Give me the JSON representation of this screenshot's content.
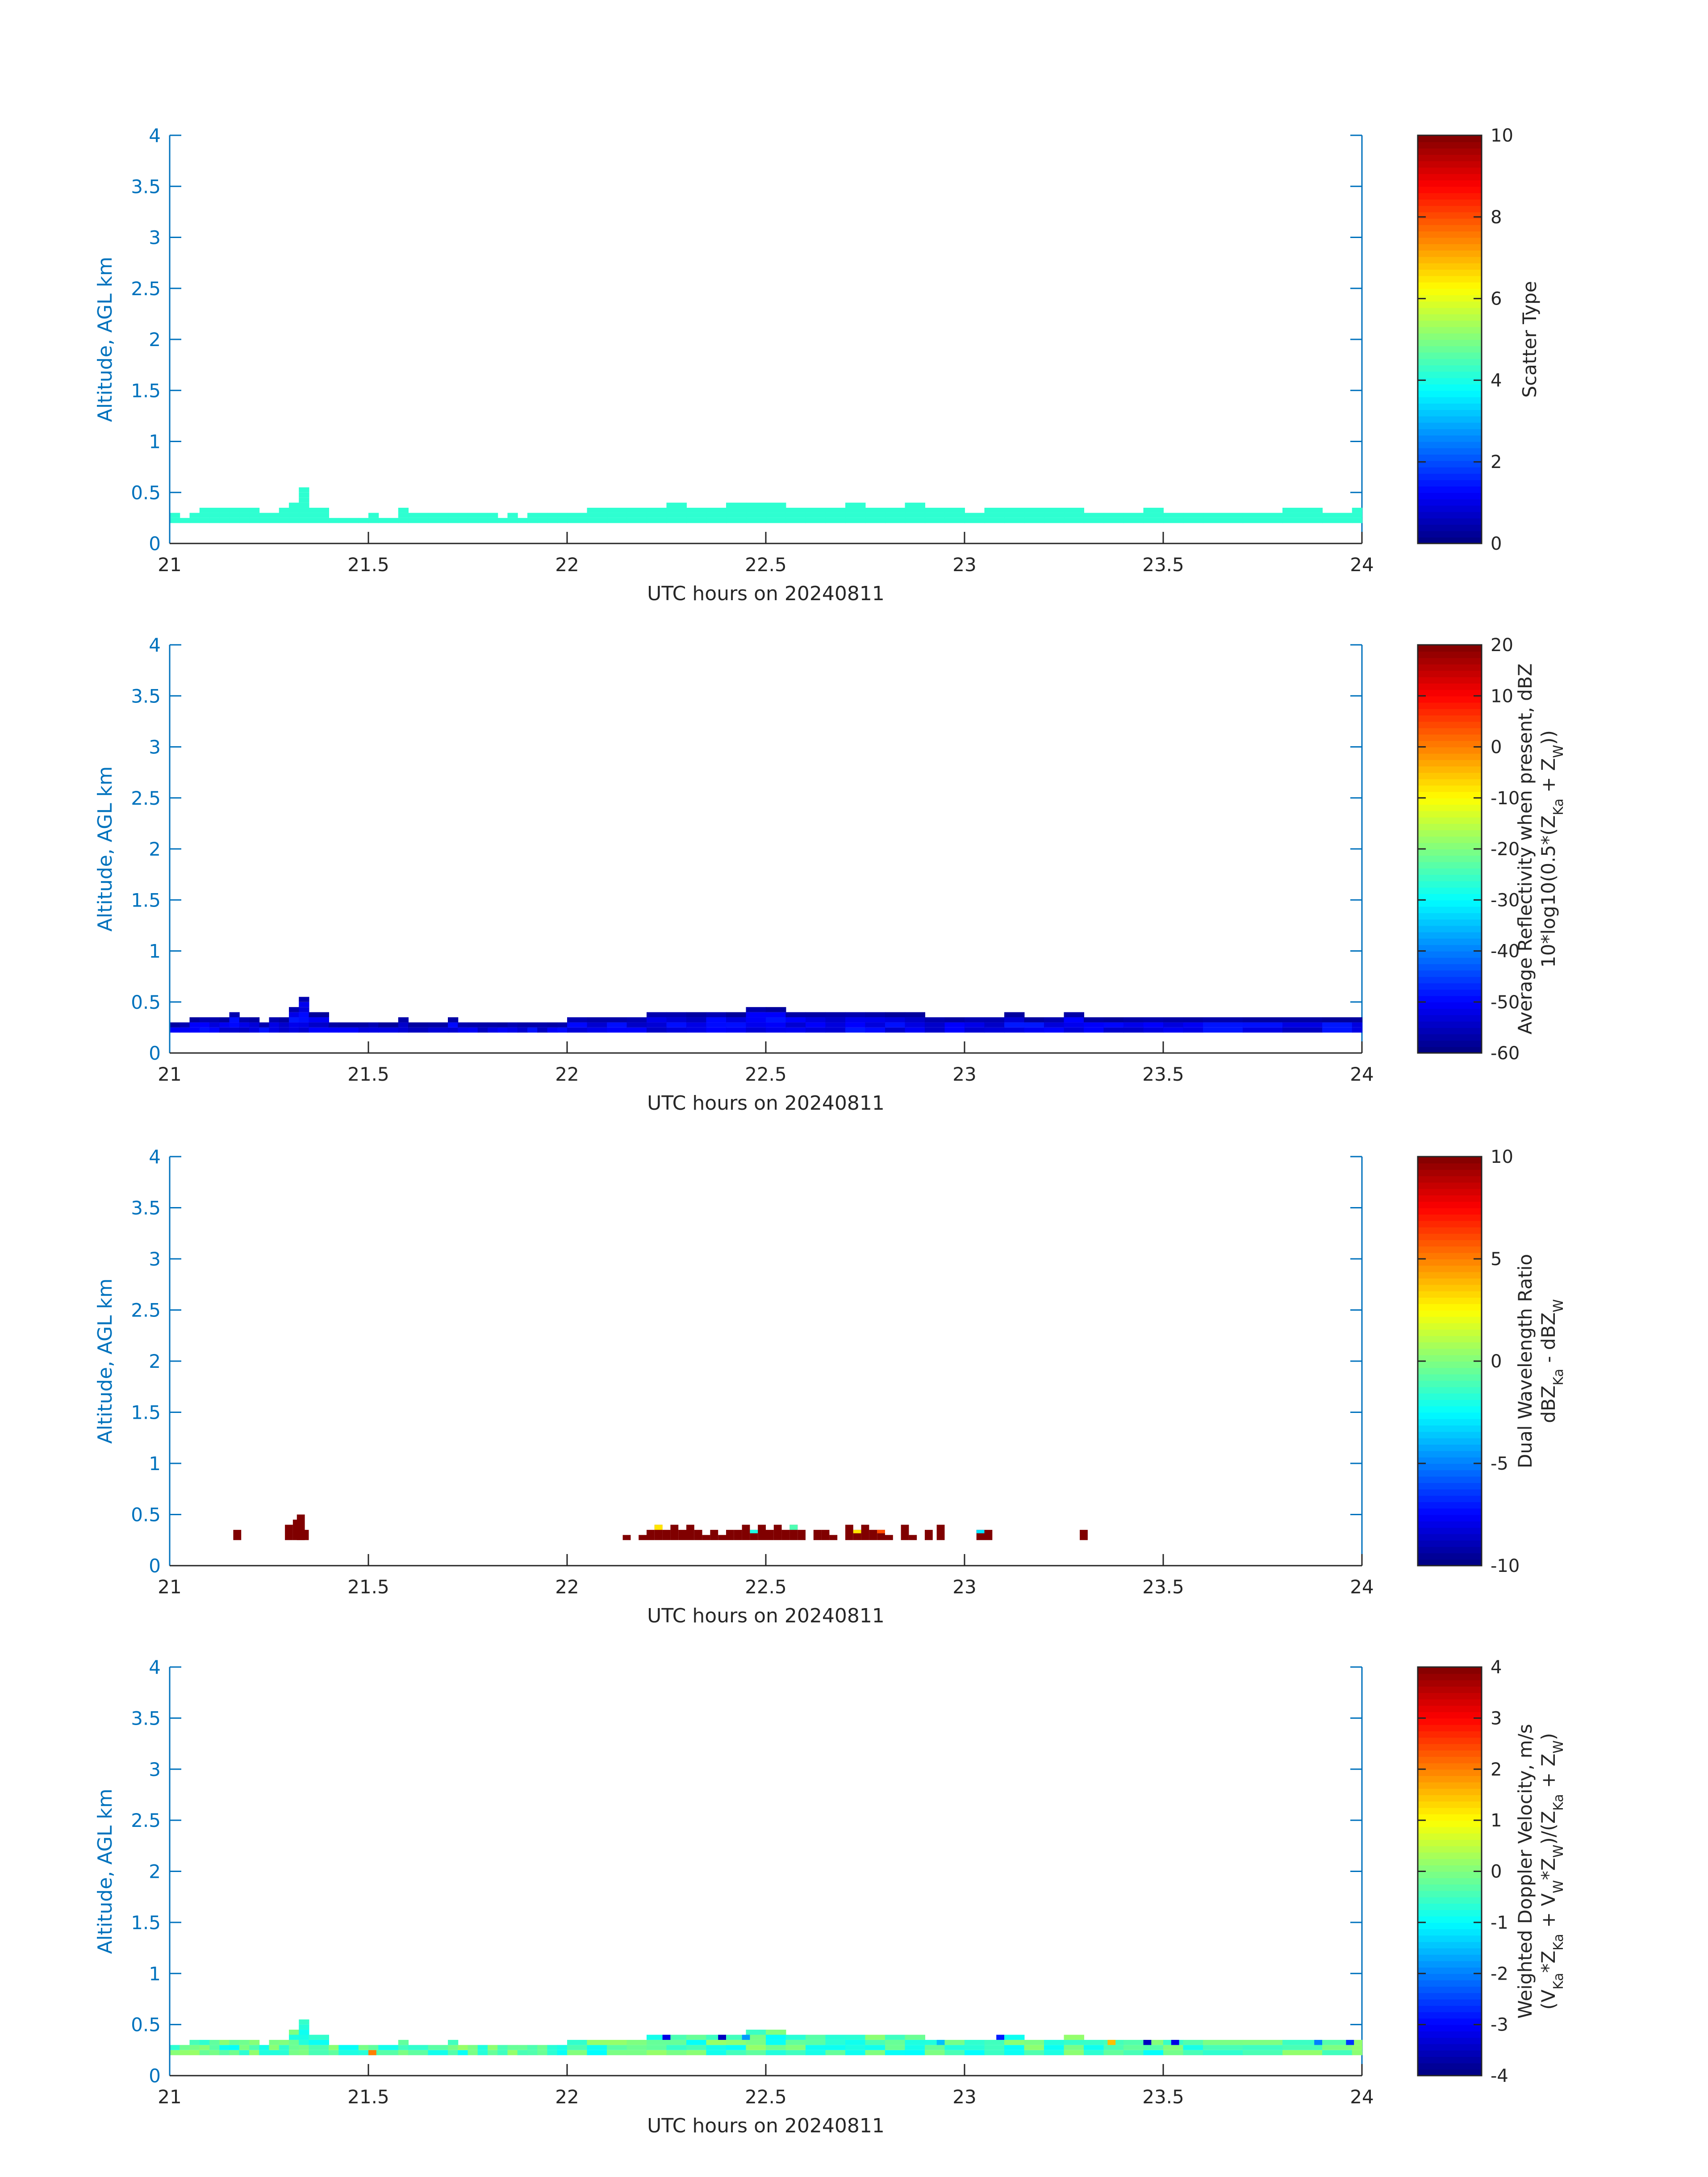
{
  "figure": {
    "xlabel": "UTC hours on 20240811",
    "ylabel": "Altitude, AGL km",
    "xticks": [
      "21",
      "21.5",
      "22",
      "22.5",
      "23",
      "23.5",
      "24"
    ],
    "yticks": [
      "0",
      "0.5",
      "1",
      "1.5",
      "2",
      "2.5",
      "3",
      "3.5",
      "4"
    ],
    "axis_color": "#0072bd",
    "text_color": "#262626",
    "colormap": "jet"
  },
  "chart_data": [
    {
      "type": "heatmap",
      "panel": "scatter-type",
      "xlabel": "UTC hours on 20240811",
      "ylabel": "Altitude, AGL km",
      "xlim": [
        21,
        24
      ],
      "ylim": [
        0,
        4
      ],
      "colorbar": {
        "labels": [
          "Scatter Type"
        ],
        "range": [
          0,
          10
        ],
        "ticks": [
          "0",
          "2",
          "4",
          "6",
          "8",
          "10"
        ]
      },
      "cloud_value": 4.2,
      "cloud_top_km": [
        0.3,
        0.3,
        0.3,
        0.3,
        0.3,
        0.3,
        0.3,
        0.3,
        0.3,
        0.3,
        0.3,
        0.3,
        0.3,
        0.3,
        0.3,
        0.3,
        0.3,
        0.3,
        0.3,
        0.3,
        0.3,
        0.3,
        0.3,
        0.3,
        0.3,
        0.3,
        0.3,
        0.3,
        0.3,
        0.3,
        0.3,
        0.3,
        0.3,
        0.3,
        0.3,
        0.3,
        0.3,
        0.3,
        0.3,
        0.3,
        0.3,
        0.3,
        0.3,
        0.3,
        0.3,
        0.3,
        0.3,
        0.3,
        0.3,
        0.3,
        0.3,
        0.3,
        0.3,
        0.3,
        0.3,
        0.3,
        0.3,
        0.3,
        0.3,
        0.3,
        0.3,
        0.3,
        0.3,
        0.3,
        0.3,
        0.3,
        0.3,
        0.3,
        0.3,
        0.3,
        0.3,
        0.3
      ],
      "columns": [
        [
          21.0,
          0.3
        ],
        [
          21.025,
          0.25
        ],
        [
          21.05,
          0.3
        ],
        [
          21.075,
          0.35
        ],
        [
          21.1,
          0.35
        ],
        [
          21.125,
          0.35
        ],
        [
          21.15,
          0.35
        ],
        [
          21.175,
          0.35
        ],
        [
          21.2,
          0.35
        ],
        [
          21.225,
          0.3
        ],
        [
          21.25,
          0.3
        ],
        [
          21.275,
          0.35
        ],
        [
          21.3,
          0.4
        ],
        [
          21.325,
          0.55
        ],
        [
          21.35,
          0.35
        ],
        [
          21.4,
          0.25
        ],
        [
          21.425,
          0.25
        ],
        [
          21.475,
          0.25
        ],
        [
          21.5,
          0.3
        ],
        [
          21.525,
          0.25
        ],
        [
          21.575,
          0.35
        ],
        [
          21.6,
          0.3
        ],
        [
          21.65,
          0.3
        ],
        [
          21.7,
          0.3
        ],
        [
          21.725,
          0.3
        ],
        [
          21.75,
          0.3
        ],
        [
          21.775,
          0.3
        ],
        [
          21.8,
          0.3
        ],
        [
          21.825,
          0.25
        ],
        [
          21.85,
          0.3
        ],
        [
          21.875,
          0.25
        ],
        [
          21.9,
          0.3
        ],
        [
          21.925,
          0.3
        ],
        [
          21.95,
          0.3
        ],
        [
          21.975,
          0.3
        ],
        [
          22.0,
          0.3
        ],
        [
          22.05,
          0.35
        ],
        [
          22.1,
          0.35
        ],
        [
          22.15,
          0.35
        ],
        [
          22.2,
          0.35
        ],
        [
          22.25,
          0.4
        ],
        [
          22.3,
          0.35
        ],
        [
          22.35,
          0.35
        ],
        [
          22.4,
          0.4
        ],
        [
          22.45,
          0.4
        ],
        [
          22.5,
          0.4
        ],
        [
          22.55,
          0.35
        ],
        [
          22.6,
          0.35
        ],
        [
          22.65,
          0.35
        ],
        [
          22.7,
          0.4
        ],
        [
          22.75,
          0.35
        ],
        [
          22.8,
          0.35
        ],
        [
          22.85,
          0.4
        ],
        [
          22.9,
          0.35
        ],
        [
          22.95,
          0.35
        ],
        [
          23.0,
          0.3
        ],
        [
          23.05,
          0.35
        ],
        [
          23.1,
          0.35
        ],
        [
          23.15,
          0.35
        ],
        [
          23.2,
          0.35
        ],
        [
          23.25,
          0.35
        ],
        [
          23.3,
          0.3
        ],
        [
          23.35,
          0.3
        ],
        [
          23.4,
          0.3
        ],
        [
          23.45,
          0.35
        ],
        [
          23.5,
          0.3
        ],
        [
          23.55,
          0.3
        ],
        [
          23.6,
          0.3
        ],
        [
          23.7,
          0.3
        ],
        [
          23.8,
          0.35
        ],
        [
          23.9,
          0.3
        ],
        [
          23.975,
          0.35
        ]
      ]
    },
    {
      "type": "heatmap",
      "panel": "average-reflectivity",
      "xlabel": "UTC hours on 20240811",
      "ylabel": "Altitude, AGL km",
      "xlim": [
        21,
        24
      ],
      "ylim": [
        0,
        4
      ],
      "colorbar": {
        "labels": [
          "Average Reflectivity when present, dBZ",
          "10*log10(0.5*(Z_Ka + Z_W))"
        ],
        "range": [
          -60,
          20
        ],
        "ticks": [
          "-60",
          "-50",
          "-40",
          "-30",
          "-20",
          "-10",
          "0",
          "10",
          "20"
        ]
      },
      "value_range_dbz": [
        -58,
        -48
      ],
      "columns": [
        [
          21.0,
          0.3
        ],
        [
          21.025,
          0.3
        ],
        [
          21.05,
          0.35
        ],
        [
          21.075,
          0.35
        ],
        [
          21.1,
          0.35
        ],
        [
          21.125,
          0.35
        ],
        [
          21.15,
          0.4
        ],
        [
          21.175,
          0.35
        ],
        [
          21.2,
          0.35
        ],
        [
          21.225,
          0.3
        ],
        [
          21.25,
          0.35
        ],
        [
          21.275,
          0.35
        ],
        [
          21.3,
          0.45
        ],
        [
          21.325,
          0.55
        ],
        [
          21.35,
          0.4
        ],
        [
          21.4,
          0.3
        ],
        [
          21.425,
          0.3
        ],
        [
          21.475,
          0.3
        ],
        [
          21.5,
          0.3
        ],
        [
          21.525,
          0.3
        ],
        [
          21.575,
          0.35
        ],
        [
          21.6,
          0.3
        ],
        [
          21.65,
          0.3
        ],
        [
          21.7,
          0.35
        ],
        [
          21.725,
          0.3
        ],
        [
          21.75,
          0.3
        ],
        [
          21.775,
          0.3
        ],
        [
          21.8,
          0.3
        ],
        [
          21.825,
          0.3
        ],
        [
          21.85,
          0.3
        ],
        [
          21.875,
          0.3
        ],
        [
          21.9,
          0.3
        ],
        [
          21.925,
          0.3
        ],
        [
          21.95,
          0.3
        ],
        [
          21.975,
          0.3
        ],
        [
          22.0,
          0.35
        ],
        [
          22.05,
          0.35
        ],
        [
          22.1,
          0.35
        ],
        [
          22.15,
          0.35
        ],
        [
          22.2,
          0.4
        ],
        [
          22.25,
          0.4
        ],
        [
          22.3,
          0.4
        ],
        [
          22.35,
          0.4
        ],
        [
          22.4,
          0.4
        ],
        [
          22.45,
          0.45
        ],
        [
          22.5,
          0.45
        ],
        [
          22.55,
          0.4
        ],
        [
          22.6,
          0.4
        ],
        [
          22.65,
          0.4
        ],
        [
          22.7,
          0.4
        ],
        [
          22.75,
          0.4
        ],
        [
          22.8,
          0.4
        ],
        [
          22.85,
          0.4
        ],
        [
          22.9,
          0.35
        ],
        [
          22.95,
          0.35
        ],
        [
          23.0,
          0.35
        ],
        [
          23.05,
          0.35
        ],
        [
          23.1,
          0.4
        ],
        [
          23.15,
          0.35
        ],
        [
          23.2,
          0.35
        ],
        [
          23.25,
          0.4
        ],
        [
          23.3,
          0.35
        ],
        [
          23.35,
          0.35
        ],
        [
          23.4,
          0.35
        ],
        [
          23.45,
          0.35
        ],
        [
          23.5,
          0.35
        ],
        [
          23.55,
          0.35
        ],
        [
          23.6,
          0.35
        ],
        [
          23.7,
          0.35
        ],
        [
          23.8,
          0.35
        ],
        [
          23.9,
          0.35
        ],
        [
          23.975,
          0.35
        ]
      ]
    },
    {
      "type": "heatmap",
      "panel": "dual-wavelength-ratio",
      "xlabel": "UTC hours on 20240811",
      "ylabel": "Altitude, AGL km",
      "xlim": [
        21,
        24
      ],
      "ylim": [
        0,
        4
      ],
      "colorbar": {
        "labels": [
          "Dual Wavelength Ratio",
          "dBZ_Ka - dBZ_W"
        ],
        "range": [
          -10,
          10
        ],
        "ticks": [
          "-10",
          "-5",
          "0",
          "5",
          "10"
        ]
      },
      "cells": [
        [
          21.16,
          0.35,
          10
        ],
        [
          21.29,
          0.4,
          10
        ],
        [
          21.31,
          0.45,
          10
        ],
        [
          21.32,
          0.5,
          10
        ],
        [
          21.33,
          0.35,
          10
        ],
        [
          22.14,
          0.3,
          10
        ],
        [
          22.18,
          0.3,
          10
        ],
        [
          22.2,
          0.35,
          10
        ],
        [
          22.22,
          0.4,
          3
        ],
        [
          22.24,
          0.35,
          10
        ],
        [
          22.26,
          0.4,
          10
        ],
        [
          22.28,
          0.35,
          10
        ],
        [
          22.3,
          0.4,
          10
        ],
        [
          22.32,
          0.35,
          10
        ],
        [
          22.34,
          0.3,
          10
        ],
        [
          22.36,
          0.35,
          10
        ],
        [
          22.38,
          0.3,
          10
        ],
        [
          22.4,
          0.35,
          10
        ],
        [
          22.42,
          0.35,
          10
        ],
        [
          22.44,
          0.4,
          10
        ],
        [
          22.46,
          0.35,
          -2
        ],
        [
          22.48,
          0.4,
          10
        ],
        [
          22.5,
          0.35,
          10
        ],
        [
          22.52,
          0.4,
          10
        ],
        [
          22.54,
          0.35,
          10
        ],
        [
          22.56,
          0.4,
          -1
        ],
        [
          22.58,
          0.35,
          10
        ],
        [
          22.62,
          0.35,
          10
        ],
        [
          22.64,
          0.35,
          10
        ],
        [
          22.66,
          0.3,
          10
        ],
        [
          22.7,
          0.4,
          10
        ],
        [
          22.72,
          0.35,
          3
        ],
        [
          22.74,
          0.4,
          10
        ],
        [
          22.76,
          0.35,
          10
        ],
        [
          22.78,
          0.35,
          6
        ],
        [
          22.8,
          0.3,
          10
        ],
        [
          22.84,
          0.4,
          10
        ],
        [
          22.86,
          0.3,
          10
        ],
        [
          22.9,
          0.35,
          10
        ],
        [
          22.93,
          0.4,
          10
        ],
        [
          23.03,
          0.35,
          -3
        ],
        [
          23.05,
          0.35,
          10
        ],
        [
          23.29,
          0.35,
          10
        ]
      ]
    },
    {
      "type": "heatmap",
      "panel": "weighted-doppler-velocity",
      "xlabel": "UTC hours on 20240811",
      "ylabel": "Altitude, AGL km",
      "xlim": [
        21,
        24
      ],
      "ylim": [
        0,
        4
      ],
      "colorbar": {
        "labels": [
          "Weighted Doppler Velocity, m/s",
          "(V_Ka*Z_Ka + V_W*Z_W)/(Z_Ka + Z_W)"
        ],
        "range": [
          -4,
          4
        ],
        "ticks": [
          "-4",
          "-3",
          "-2",
          "-1",
          "0",
          "1",
          "2",
          "3",
          "4"
        ]
      },
      "value_range_ms": [
        -1.0,
        0.2
      ],
      "columns": [
        [
          21.0,
          0.3
        ],
        [
          21.025,
          0.3
        ],
        [
          21.05,
          0.35
        ],
        [
          21.075,
          0.35
        ],
        [
          21.1,
          0.35
        ],
        [
          21.125,
          0.35
        ],
        [
          21.15,
          0.35
        ],
        [
          21.175,
          0.35
        ],
        [
          21.2,
          0.35
        ],
        [
          21.225,
          0.3
        ],
        [
          21.25,
          0.35
        ],
        [
          21.275,
          0.35
        ],
        [
          21.3,
          0.45
        ],
        [
          21.325,
          0.55
        ],
        [
          21.35,
          0.4
        ],
        [
          21.4,
          0.3
        ],
        [
          21.425,
          0.3
        ],
        [
          21.475,
          0.3
        ],
        [
          21.5,
          0.3
        ],
        [
          21.525,
          0.3
        ],
        [
          21.575,
          0.35
        ],
        [
          21.6,
          0.3
        ],
        [
          21.65,
          0.3
        ],
        [
          21.7,
          0.35
        ],
        [
          21.725,
          0.3
        ],
        [
          21.75,
          0.3
        ],
        [
          21.775,
          0.3
        ],
        [
          21.8,
          0.3
        ],
        [
          21.825,
          0.3
        ],
        [
          21.85,
          0.3
        ],
        [
          21.875,
          0.3
        ],
        [
          21.9,
          0.3
        ],
        [
          21.925,
          0.3
        ],
        [
          21.95,
          0.3
        ],
        [
          21.975,
          0.3
        ],
        [
          22.0,
          0.35
        ],
        [
          22.05,
          0.35
        ],
        [
          22.1,
          0.35
        ],
        [
          22.15,
          0.35
        ],
        [
          22.2,
          0.4
        ],
        [
          22.25,
          0.4
        ],
        [
          22.3,
          0.4
        ],
        [
          22.35,
          0.4
        ],
        [
          22.4,
          0.4
        ],
        [
          22.45,
          0.45
        ],
        [
          22.5,
          0.45
        ],
        [
          22.55,
          0.4
        ],
        [
          22.6,
          0.4
        ],
        [
          22.65,
          0.4
        ],
        [
          22.7,
          0.4
        ],
        [
          22.75,
          0.4
        ],
        [
          22.8,
          0.4
        ],
        [
          22.85,
          0.4
        ],
        [
          22.9,
          0.35
        ],
        [
          22.95,
          0.35
        ],
        [
          23.0,
          0.35
        ],
        [
          23.05,
          0.35
        ],
        [
          23.1,
          0.4
        ],
        [
          23.15,
          0.35
        ],
        [
          23.2,
          0.35
        ],
        [
          23.25,
          0.4
        ],
        [
          23.3,
          0.35
        ],
        [
          23.35,
          0.35
        ],
        [
          23.4,
          0.35
        ],
        [
          23.45,
          0.35
        ],
        [
          23.5,
          0.35
        ],
        [
          23.55,
          0.35
        ],
        [
          23.6,
          0.35
        ],
        [
          23.7,
          0.35
        ],
        [
          23.8,
          0.35
        ],
        [
          23.9,
          0.35
        ],
        [
          23.975,
          0.35
        ]
      ],
      "accents": [
        [
          21.5,
          0.25,
          2.0
        ],
        [
          22.24,
          0.4,
          -3.2
        ],
        [
          22.38,
          0.4,
          -3.5
        ],
        [
          22.44,
          0.4,
          -1.8
        ],
        [
          22.93,
          0.35,
          -1.5
        ],
        [
          23.08,
          0.4,
          -2.8
        ],
        [
          23.36,
          0.35,
          1.5
        ],
        [
          23.45,
          0.35,
          -3.5
        ],
        [
          23.52,
          0.35,
          -3.2
        ],
        [
          23.88,
          0.35,
          -2.0
        ],
        [
          23.96,
          0.35,
          -2.6
        ]
      ]
    }
  ]
}
